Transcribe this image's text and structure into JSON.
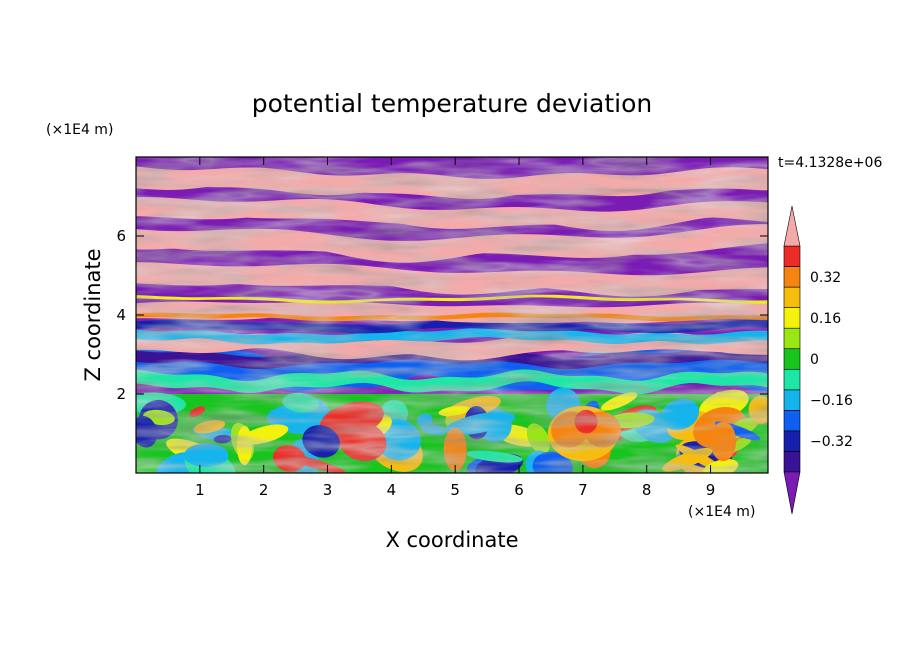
{
  "chart_data": {
    "type": "heatmap",
    "title": "potential temperature deviation",
    "time_label": "t=4.1328e+06",
    "xlabel": "X coordinate",
    "ylabel": "Z coordinate",
    "x_unit": "(×1E4 m)",
    "y_unit": "(×1E4 m)",
    "xlim": [
      0,
      9.9
    ],
    "ylim": [
      0,
      8
    ],
    "x_ticks": [
      "1",
      "2",
      "3",
      "4",
      "5",
      "6",
      "7",
      "8",
      "9"
    ],
    "y_ticks": [
      "2",
      "4",
      "6"
    ],
    "colorbar": {
      "levels": [
        -0.48,
        -0.4,
        -0.32,
        -0.24,
        -0.16,
        -0.08,
        0,
        0.08,
        0.16,
        0.24,
        0.32,
        0.4,
        0.48
      ],
      "tick_labels": [
        "0.32",
        "0.16",
        "0",
        "−0.16",
        "−0.32"
      ],
      "tick_values": [
        0.32,
        0.16,
        0,
        -0.16,
        -0.32
      ],
      "colors": [
        "#7a1cb4",
        "#3a1296",
        "#1620ad",
        "#0f60f0",
        "#15b4ec",
        "#1fe6a6",
        "#18c41e",
        "#9ae614",
        "#f2f20e",
        "#f6bd0e",
        "#f68410",
        "#ec2e26",
        "#f5aaaa"
      ],
      "extend": "both"
    },
    "field_summary": {
      "upper_layers": "alternating bands near +0.48 (pink) and -0.48 (purple) above z≈3.5",
      "lower_layer": "turbulent mix of values between -0.32 and +0.32 below z≈2, with warm plume near x≈7"
    }
  }
}
